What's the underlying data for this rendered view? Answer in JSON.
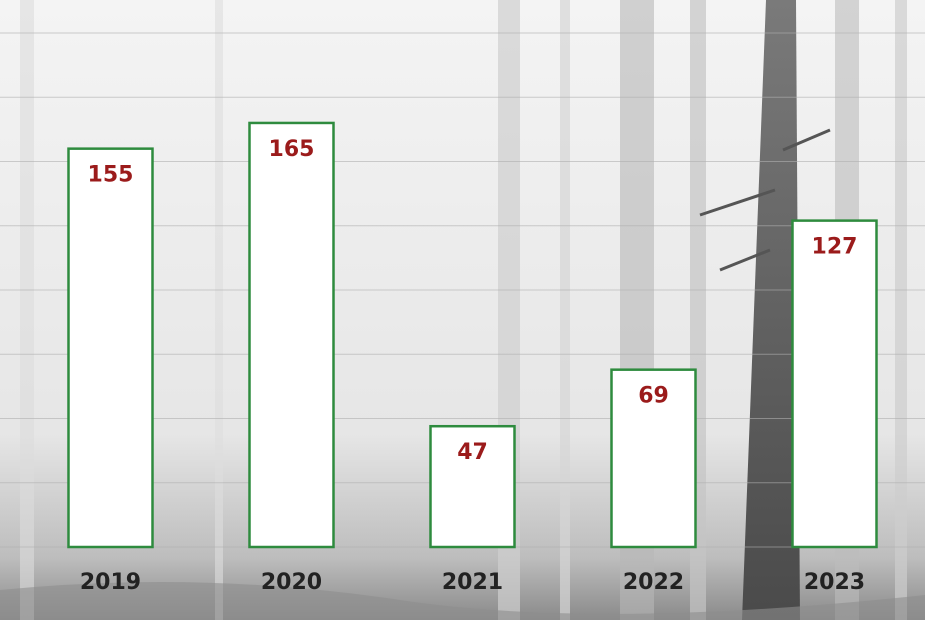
{
  "chart_data": {
    "type": "bar",
    "categories": [
      "2019",
      "2020",
      "2021",
      "2022",
      "2023"
    ],
    "values": [
      155,
      165,
      47,
      69,
      127
    ],
    "color": "#ffffff",
    "edge_color": "#2e8b3e",
    "label_color": "#9b1b1b",
    "ylim": [
      0,
      200
    ],
    "yticks": [
      0,
      25,
      50,
      75,
      100,
      125,
      150,
      175,
      200
    ],
    "grid": true
  }
}
